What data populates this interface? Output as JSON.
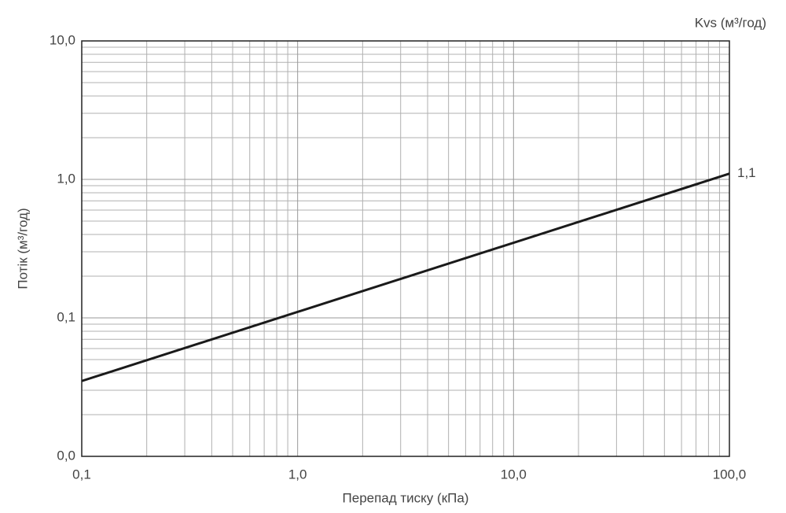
{
  "chart_data": {
    "type": "line",
    "x_label": "Перепад тиску (кПа)",
    "y_label": "Потік (м³/год)",
    "right_label": "Kvs (м³/год)",
    "x_log": true,
    "y_log": true,
    "grid": "major-minor",
    "xlim": [
      0.1,
      100
    ],
    "ylim": [
      0.01,
      10
    ],
    "xticks": [
      {
        "value": 0.1,
        "label": "0,1"
      },
      {
        "value": 1,
        "label": "1,0"
      },
      {
        "value": 10,
        "label": "10,0"
      },
      {
        "value": 100,
        "label": "100,0"
      }
    ],
    "yticks": [
      {
        "value": 0.01,
        "label": "0,0"
      },
      {
        "value": 0.1,
        "label": "0,1"
      },
      {
        "value": 1,
        "label": "1,0"
      },
      {
        "value": 10,
        "label": "10,0"
      }
    ],
    "x": [
      0.1,
      100
    ],
    "series": [
      {
        "color": "#1a1a1a",
        "values": [
          0.035,
          1.1
        ],
        "value_labels": [
          null,
          "1,1"
        ]
      }
    ]
  }
}
